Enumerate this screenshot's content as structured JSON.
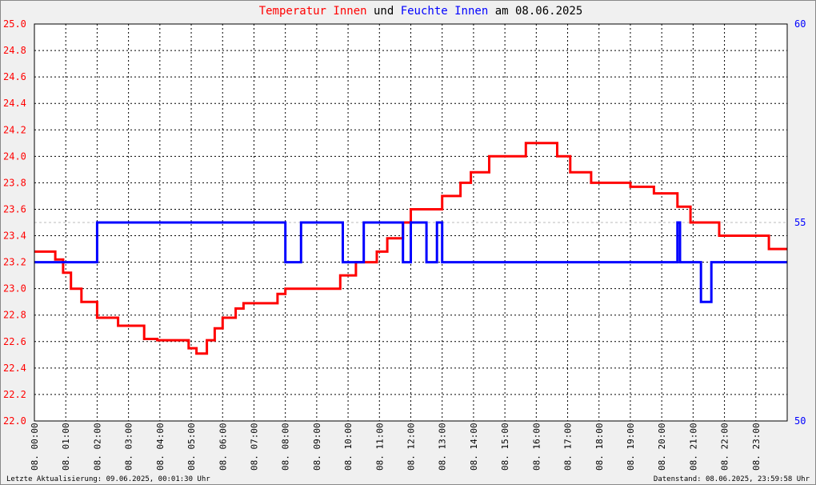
{
  "title": {
    "part1": "Temperatur Innen",
    "part2": " und ",
    "part3": "Feuchte Innen",
    "part4": " am 08.06.2025"
  },
  "colors": {
    "temperature": "#ff0000",
    "humidity": "#0000ff",
    "title_text": "#000000",
    "grid": "#000000",
    "background": "#f0f0f0",
    "plot_bg": "#ffffff"
  },
  "footer": {
    "left": "Letzte Aktualisierung: 09.06.2025, 00:01:30 Uhr",
    "right": "Datenstand: 08.06.2025, 23:59:58 Uhr"
  },
  "chart_data": {
    "type": "line",
    "xlabel": "",
    "x_ticks": [
      "08. 00:00",
      "08. 01:00",
      "08. 02:00",
      "08. 03:00",
      "08. 04:00",
      "08. 05:00",
      "08. 06:00",
      "08. 07:00",
      "08. 08:00",
      "08. 09:00",
      "08. 10:00",
      "08. 11:00",
      "08. 12:00",
      "08. 13:00",
      "08. 14:00",
      "08. 15:00",
      "08. 16:00",
      "08. 17:00",
      "08. 18:00",
      "08. 19:00",
      "08. 20:00",
      "08. 21:00",
      "08. 22:00",
      "08. 23:00"
    ],
    "xlim": [
      "00:00",
      "24:00"
    ],
    "y_left": {
      "ylim": [
        22.0,
        25.0
      ],
      "ticks": [
        "22.0",
        "22.2",
        "22.4",
        "22.6",
        "22.8",
        "23.0",
        "23.2",
        "23.4",
        "23.6",
        "23.8",
        "24.0",
        "24.2",
        "24.4",
        "24.6",
        "24.8",
        "25.0"
      ],
      "color": "#ff0000"
    },
    "y_right": {
      "ylim": [
        50,
        60
      ],
      "ticks": [
        "50",
        "55",
        "60"
      ],
      "color": "#0000ff"
    },
    "grid": true,
    "series": [
      {
        "name": "Temperatur Innen",
        "axis": "left",
        "color": "#ff0000",
        "points": [
          [
            "00:00",
            23.28
          ],
          [
            "00:40",
            23.28
          ],
          [
            "00:40",
            23.22
          ],
          [
            "00:55",
            23.22
          ],
          [
            "00:55",
            23.12
          ],
          [
            "01:10",
            23.12
          ],
          [
            "01:10",
            23.0
          ],
          [
            "01:30",
            23.0
          ],
          [
            "01:30",
            22.9
          ],
          [
            "02:00",
            22.9
          ],
          [
            "02:00",
            22.78
          ],
          [
            "02:40",
            22.78
          ],
          [
            "02:40",
            22.72
          ],
          [
            "03:30",
            22.72
          ],
          [
            "03:30",
            22.62
          ],
          [
            "03:55",
            22.62
          ],
          [
            "03:55",
            22.61
          ],
          [
            "04:55",
            22.61
          ],
          [
            "04:55",
            22.55
          ],
          [
            "05:10",
            22.55
          ],
          [
            "05:10",
            22.51
          ],
          [
            "05:30",
            22.51
          ],
          [
            "05:30",
            22.61
          ],
          [
            "05:45",
            22.61
          ],
          [
            "05:45",
            22.7
          ],
          [
            "06:00",
            22.7
          ],
          [
            "06:00",
            22.78
          ],
          [
            "06:25",
            22.78
          ],
          [
            "06:25",
            22.85
          ],
          [
            "06:40",
            22.85
          ],
          [
            "06:40",
            22.89
          ],
          [
            "07:45",
            22.89
          ],
          [
            "07:45",
            22.96
          ],
          [
            "08:00",
            22.96
          ],
          [
            "08:00",
            23.0
          ],
          [
            "09:45",
            23.0
          ],
          [
            "09:45",
            23.1
          ],
          [
            "10:15",
            23.1
          ],
          [
            "10:15",
            23.2
          ],
          [
            "10:55",
            23.2
          ],
          [
            "10:55",
            23.28
          ],
          [
            "11:15",
            23.28
          ],
          [
            "11:15",
            23.38
          ],
          [
            "11:45",
            23.38
          ],
          [
            "11:45",
            23.5
          ],
          [
            "12:00",
            23.5
          ],
          [
            "12:00",
            23.6
          ],
          [
            "13:00",
            23.6
          ],
          [
            "13:00",
            23.7
          ],
          [
            "13:35",
            23.7
          ],
          [
            "13:35",
            23.8
          ],
          [
            "13:55",
            23.8
          ],
          [
            "13:55",
            23.88
          ],
          [
            "14:30",
            23.88
          ],
          [
            "14:30",
            24.0
          ],
          [
            "15:40",
            24.0
          ],
          [
            "15:40",
            24.1
          ],
          [
            "16:40",
            24.1
          ],
          [
            "16:40",
            24.0
          ],
          [
            "17:05",
            24.0
          ],
          [
            "17:05",
            23.88
          ],
          [
            "17:45",
            23.88
          ],
          [
            "17:45",
            23.8
          ],
          [
            "19:00",
            23.8
          ],
          [
            "19:00",
            23.77
          ],
          [
            "19:45",
            23.77
          ],
          [
            "19:45",
            23.72
          ],
          [
            "20:30",
            23.72
          ],
          [
            "20:30",
            23.62
          ],
          [
            "20:55",
            23.62
          ],
          [
            "20:55",
            23.5
          ],
          [
            "21:50",
            23.5
          ],
          [
            "21:50",
            23.4
          ],
          [
            "23:25",
            23.4
          ],
          [
            "23:25",
            23.3
          ],
          [
            "24:00",
            23.3
          ]
        ]
      },
      {
        "name": "Feuchte Innen",
        "axis": "right",
        "color": "#0000ff",
        "points": [
          [
            "00:00",
            54.0
          ],
          [
            "02:00",
            54.0
          ],
          [
            "02:00",
            55.0
          ],
          [
            "08:00",
            55.0
          ],
          [
            "08:00",
            54.0
          ],
          [
            "08:30",
            54.0
          ],
          [
            "08:30",
            55.0
          ],
          [
            "09:50",
            55.0
          ],
          [
            "09:50",
            54.0
          ],
          [
            "10:30",
            54.0
          ],
          [
            "10:30",
            55.0
          ],
          [
            "11:45",
            55.0
          ],
          [
            "11:45",
            54.0
          ],
          [
            "12:00",
            54.0
          ],
          [
            "12:00",
            55.0
          ],
          [
            "12:30",
            55.0
          ],
          [
            "12:30",
            54.0
          ],
          [
            "12:50",
            54.0
          ],
          [
            "12:50",
            55.0
          ],
          [
            "13:00",
            55.0
          ],
          [
            "13:00",
            54.0
          ],
          [
            "20:30",
            54.0
          ],
          [
            "20:30",
            55.0
          ],
          [
            "20:35",
            55.0
          ],
          [
            "20:35",
            54.0
          ],
          [
            "21:15",
            54.0
          ],
          [
            "21:15",
            53.0
          ],
          [
            "21:35",
            53.0
          ],
          [
            "21:35",
            54.0
          ],
          [
            "24:00",
            54.0
          ]
        ]
      }
    ]
  }
}
